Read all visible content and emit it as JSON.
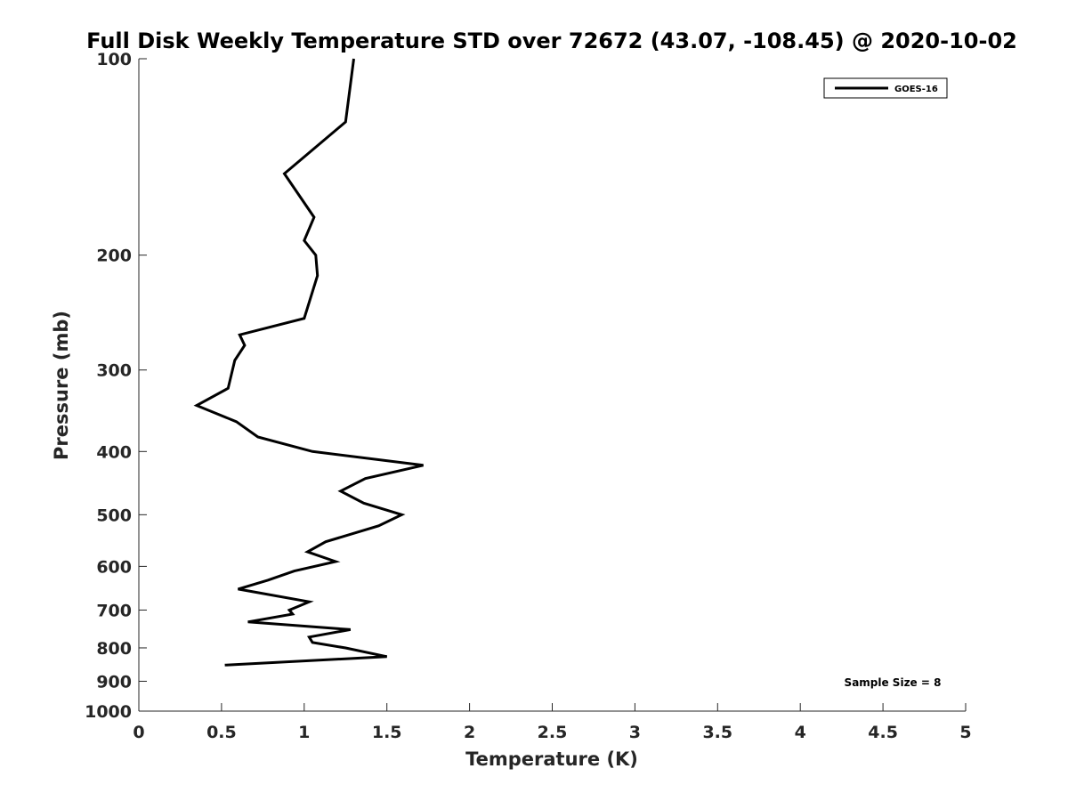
{
  "chart_data": {
    "type": "line",
    "title": "Full Disk Weekly Temperature STD over 72672 (43.07, -108.45) @ 2020-10-02",
    "xlabel": "Temperature (K)",
    "ylabel": "Pressure (mb)",
    "xlim": [
      0,
      5
    ],
    "ylim": [
      100,
      1000
    ],
    "y_scale": "log",
    "y_reversed": true,
    "x_ticks": [
      "0",
      "0.5",
      "1",
      "1.5",
      "2",
      "2.5",
      "3",
      "3.5",
      "4",
      "4.5",
      "5"
    ],
    "y_ticks": [
      "100",
      "200",
      "300",
      "400",
      "500",
      "600",
      "700",
      "800",
      "900",
      "1000"
    ],
    "grid": false,
    "legend_position": "top-right",
    "series": [
      {
        "name": "GOES-16",
        "color": "#000000",
        "x": [
          1.3,
          1.25,
          0.88,
          1.06,
          1.0,
          1.07,
          1.08,
          1.0,
          0.61,
          0.64,
          0.58,
          0.54,
          0.35,
          0.59,
          0.72,
          1.05,
          1.72,
          1.37,
          1.22,
          1.36,
          1.59,
          1.45,
          1.13,
          1.02,
          1.19,
          0.94,
          0.78,
          0.6,
          1.03,
          0.91,
          0.93,
          0.66,
          1.28,
          1.03,
          1.05,
          1.25,
          1.5,
          0.52
        ],
        "y": [
          100,
          125,
          150,
          175,
          190,
          200,
          215,
          250,
          265,
          275,
          290,
          320,
          340,
          360,
          380,
          400,
          420,
          440,
          460,
          480,
          500,
          520,
          550,
          570,
          590,
          610,
          630,
          650,
          680,
          700,
          710,
          730,
          750,
          770,
          785,
          800,
          825,
          850
        ]
      }
    ],
    "annotations": [
      "Sample Size = 8"
    ]
  }
}
